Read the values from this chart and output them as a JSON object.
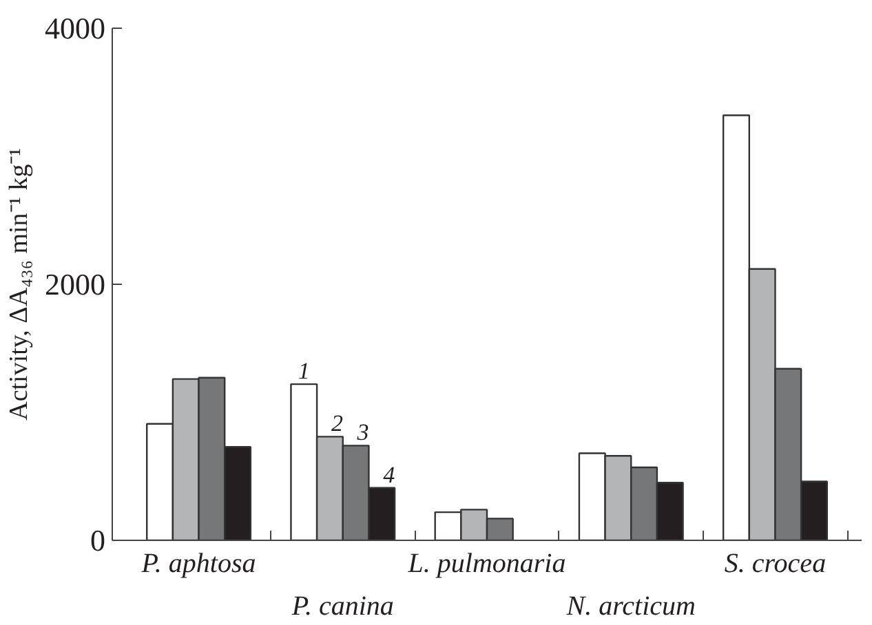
{
  "chart_data": {
    "type": "bar",
    "ylabel": "Activity, ΔA₄₃₆ min⁻¹ kg⁻¹",
    "categories": [
      "P. aphtosa",
      "P. canina",
      "L. pulmonaria",
      "N. arcticum",
      "S. crocea"
    ],
    "series": [
      {
        "name": "1",
        "color": "#ffffff",
        "values": [
          910,
          1220,
          220,
          680,
          3320
        ]
      },
      {
        "name": "2",
        "color": "#b4b5b7",
        "values": [
          1260,
          810,
          240,
          660,
          2120
        ]
      },
      {
        "name": "3",
        "color": "#767779",
        "values": [
          1270,
          740,
          170,
          570,
          1340
        ]
      },
      {
        "name": "4",
        "color": "#231f20",
        "values": [
          730,
          410,
          null,
          450,
          460
        ]
      }
    ],
    "ylim": [
      0,
      4000
    ],
    "yticks": [
      0,
      2000,
      4000
    ],
    "grid": false
  }
}
